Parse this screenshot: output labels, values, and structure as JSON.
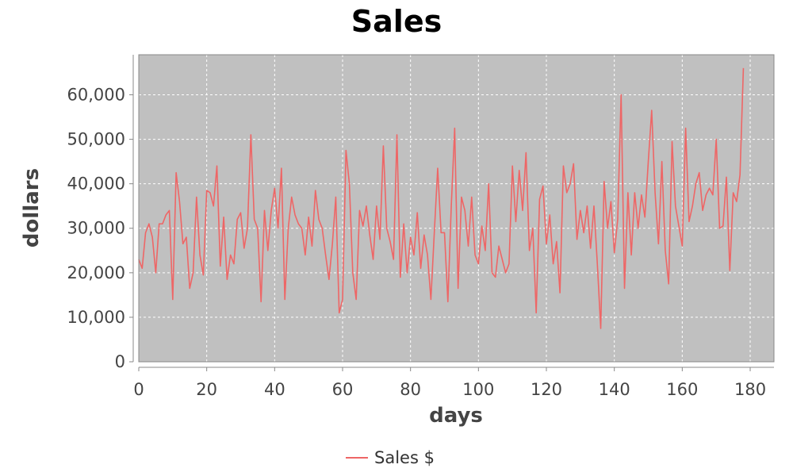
{
  "chart_data": {
    "type": "line",
    "title": "Sales",
    "xlabel": "days",
    "ylabel": "dollars",
    "xlim": [
      0,
      187
    ],
    "ylim": [
      0,
      69000
    ],
    "x_ticks": [
      0,
      20,
      40,
      60,
      80,
      100,
      120,
      140,
      160,
      180
    ],
    "x_tick_labels": [
      "0",
      "20",
      "40",
      "60",
      "80",
      "100",
      "120",
      "140",
      "160",
      "180"
    ],
    "y_ticks": [
      0,
      10000,
      20000,
      30000,
      40000,
      50000,
      60000
    ],
    "y_tick_labels": [
      "0",
      "10,000",
      "20,000",
      "30,000",
      "40,000",
      "50,000",
      "60,000"
    ],
    "grid": true,
    "legend_position": "bottom-center",
    "plot_background": "#c0c0c0",
    "series": [
      {
        "name": "Sales $",
        "color": "#ee6666",
        "x": [
          0,
          1,
          2,
          3,
          4,
          5,
          6,
          7,
          8,
          9,
          10,
          11,
          12,
          13,
          14,
          15,
          16,
          17,
          18,
          19,
          20,
          21,
          22,
          23,
          24,
          25,
          26,
          27,
          28,
          29,
          30,
          31,
          32,
          33,
          34,
          35,
          36,
          37,
          38,
          39,
          40,
          41,
          42,
          43,
          44,
          45,
          46,
          47,
          48,
          49,
          50,
          51,
          52,
          53,
          54,
          55,
          56,
          57,
          58,
          59,
          60,
          61,
          62,
          63,
          64,
          65,
          66,
          67,
          68,
          69,
          70,
          71,
          72,
          73,
          74,
          75,
          76,
          77,
          78,
          79,
          80,
          81,
          82,
          83,
          84,
          85,
          86,
          87,
          88,
          89,
          90,
          91,
          92,
          93,
          94,
          95,
          96,
          97,
          98,
          99,
          100,
          101,
          102,
          103,
          104,
          105,
          106,
          107,
          108,
          109,
          110,
          111,
          112,
          113,
          114,
          115,
          116,
          117,
          118,
          119,
          120,
          121,
          122,
          123,
          124,
          125,
          126,
          127,
          128,
          129,
          130,
          131,
          132,
          133,
          134,
          135,
          136,
          137,
          138,
          139,
          140,
          141,
          142,
          143,
          144,
          145,
          146,
          147,
          148,
          149,
          150,
          151,
          152,
          153,
          154,
          155,
          156,
          157,
          158,
          159,
          160,
          161,
          162,
          163,
          164,
          165,
          166,
          167,
          168,
          169,
          170,
          171,
          172,
          173,
          174,
          175,
          176,
          177,
          178
        ],
        "values": [
          23000,
          21000,
          29000,
          31000,
          28000,
          20000,
          31000,
          31000,
          33000,
          34000,
          14000,
          42500,
          36000,
          26500,
          28000,
          16500,
          20000,
          37000,
          24000,
          19500,
          38500,
          38000,
          35000,
          44000,
          21500,
          32500,
          18500,
          24000,
          22000,
          32000,
          33500,
          25500,
          30000,
          51000,
          32000,
          30000,
          13500,
          34000,
          25000,
          34000,
          39000,
          30000,
          43500,
          14000,
          30000,
          37000,
          33000,
          31000,
          30000,
          24000,
          32500,
          26000,
          38500,
          32000,
          30000,
          24000,
          18500,
          26500,
          37000,
          11000,
          14000,
          47500,
          40000,
          20000,
          14000,
          34000,
          30500,
          35000,
          28500,
          23000,
          35000,
          27500,
          48500,
          30000,
          27000,
          23000,
          51000,
          19000,
          31000,
          20000,
          28000,
          24000,
          33500,
          21000,
          28500,
          24000,
          14000,
          29000,
          43500,
          29000,
          29000,
          13500,
          35000,
          52500,
          16500,
          37000,
          34000,
          26000,
          37000,
          24000,
          22000,
          30500,
          25000,
          40000,
          20000,
          19000,
          26000,
          23000,
          20000,
          22000,
          44000,
          31500,
          43000,
          34000,
          47000,
          25000,
          30000,
          11000,
          36500,
          39500,
          26500,
          33000,
          22000,
          27000,
          15500,
          44000,
          38000,
          40000,
          44500,
          27500,
          34000,
          29000,
          35000,
          25500,
          35000,
          22000,
          7500,
          40500,
          30000,
          36000,
          24500,
          32000,
          60000,
          16500,
          38000,
          24000,
          38000,
          30000,
          37500,
          32500,
          45000,
          56500,
          38000,
          26500,
          45000,
          25000,
          17500,
          49500,
          35000,
          30500,
          26000,
          52500,
          31500,
          35000,
          40000,
          42500,
          34000,
          37500,
          39000,
          37500,
          50000,
          30000,
          30500,
          41500,
          20500,
          38000,
          36000,
          42000,
          66000
        ]
      }
    ]
  }
}
